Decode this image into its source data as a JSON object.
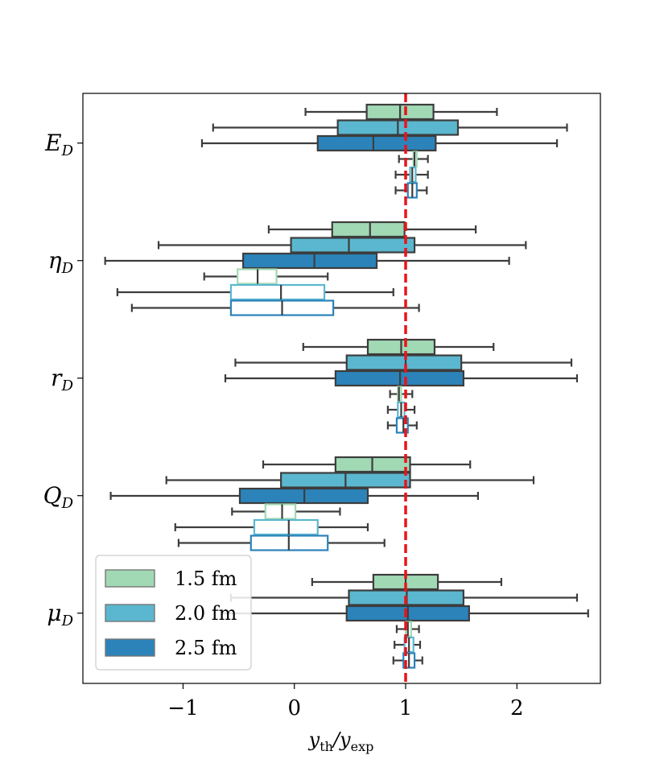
{
  "chart_data": {
    "type": "boxplot",
    "orientation": "horizontal",
    "xlabel": "y_th / y_exp",
    "xlim": [
      -1.9,
      2.75
    ],
    "xticks": [
      -1,
      0,
      1,
      2
    ],
    "xtick_labels": [
      "−1",
      "0",
      "1",
      "2"
    ],
    "reference_line": {
      "x": 1,
      "color": "#e8141a",
      "style": "dashed"
    },
    "categories": [
      "E_D",
      "η_D",
      "r_D",
      "Q_D",
      "μ_D"
    ],
    "category_labels": [
      {
        "main": "E",
        "sub": "D"
      },
      {
        "main": "η",
        "sub": "D"
      },
      {
        "main": "r",
        "sub": "D"
      },
      {
        "main": "Q",
        "sub": "D"
      },
      {
        "main": "μ",
        "sub": "D"
      }
    ],
    "legend": {
      "placement": "lower-left",
      "entries": [
        {
          "label": "1.5 fm",
          "color": "#a1d9b4"
        },
        {
          "label": "2.0 fm",
          "color": "#5bb7cf"
        },
        {
          "label": "2.5 fm",
          "color": "#2b83ba"
        }
      ]
    },
    "groups": [
      {
        "category": "E_D",
        "boxes": [
          {
            "series": "1.5 fm",
            "style": "filled",
            "whislo": 0.1,
            "q1": 0.65,
            "med": 0.95,
            "q3": 1.25,
            "whishi": 1.82
          },
          {
            "series": "2.0 fm",
            "style": "filled",
            "whislo": -0.73,
            "q1": 0.39,
            "med": 0.93,
            "q3": 1.47,
            "whishi": 2.45
          },
          {
            "series": "2.5 fm",
            "style": "filled",
            "whislo": -0.83,
            "q1": 0.21,
            "med": 0.71,
            "q3": 1.27,
            "whishi": 2.36
          },
          {
            "series": "1.5 fm",
            "style": "outline",
            "whislo": 0.94,
            "q1": 1.07,
            "med": 1.08,
            "q3": 1.1,
            "whishi": 1.2
          },
          {
            "series": "2.0 fm",
            "style": "outline",
            "whislo": 0.91,
            "q1": 1.04,
            "med": 1.06,
            "q3": 1.09,
            "whishi": 1.2
          },
          {
            "series": "2.5 fm",
            "style": "outline",
            "whislo": 0.91,
            "q1": 1.02,
            "med": 1.06,
            "q3": 1.1,
            "whishi": 1.19
          }
        ]
      },
      {
        "category": "η_D",
        "boxes": [
          {
            "series": "1.5 fm",
            "style": "filled",
            "whislo": -0.23,
            "q1": 0.34,
            "med": 0.68,
            "q3": 0.99,
            "whishi": 1.63
          },
          {
            "series": "2.0 fm",
            "style": "filled",
            "whislo": -1.22,
            "q1": -0.03,
            "med": 0.49,
            "q3": 1.08,
            "whishi": 2.08
          },
          {
            "series": "2.5 fm",
            "style": "filled",
            "whislo": -1.7,
            "q1": -0.46,
            "med": 0.18,
            "q3": 0.74,
            "whishi": 1.93
          },
          {
            "series": "1.5 fm",
            "style": "outline",
            "whislo": -0.81,
            "q1": -0.51,
            "med": -0.33,
            "q3": -0.16,
            "whishi": 0.3
          },
          {
            "series": "2.0 fm",
            "style": "outline",
            "whislo": -1.59,
            "q1": -0.57,
            "med": -0.12,
            "q3": 0.27,
            "whishi": 0.89
          },
          {
            "series": "2.5 fm",
            "style": "outline",
            "whislo": -1.46,
            "q1": -0.57,
            "med": -0.11,
            "q3": 0.35,
            "whishi": 1.12
          }
        ]
      },
      {
        "category": "r_D",
        "boxes": [
          {
            "series": "1.5 fm",
            "style": "filled",
            "whislo": 0.08,
            "q1": 0.66,
            "med": 0.96,
            "q3": 1.26,
            "whishi": 1.79
          },
          {
            "series": "2.0 fm",
            "style": "filled",
            "whislo": -0.53,
            "q1": 0.47,
            "med": 1.0,
            "q3": 1.5,
            "whishi": 2.49
          },
          {
            "series": "2.5 fm",
            "style": "filled",
            "whislo": -0.62,
            "q1": 0.37,
            "med": 0.95,
            "q3": 1.52,
            "whishi": 2.54
          },
          {
            "series": "1.5 fm",
            "style": "outline",
            "whislo": 0.86,
            "q1": 0.93,
            "med": 0.94,
            "q3": 0.96,
            "whishi": 1.06
          },
          {
            "series": "2.0 fm",
            "style": "outline",
            "whislo": 0.84,
            "q1": 0.93,
            "med": 0.96,
            "q3": 0.99,
            "whishi": 1.08
          },
          {
            "series": "2.5 fm",
            "style": "outline",
            "whislo": 0.84,
            "q1": 0.92,
            "med": 0.98,
            "q3": 1.02,
            "whishi": 1.1
          }
        ]
      },
      {
        "category": "Q_D",
        "boxes": [
          {
            "series": "1.5 fm",
            "style": "filled",
            "whislo": -0.28,
            "q1": 0.37,
            "med": 0.7,
            "q3": 1.04,
            "whishi": 1.58
          },
          {
            "series": "2.0 fm",
            "style": "filled",
            "whislo": -1.15,
            "q1": -0.12,
            "med": 0.46,
            "q3": 1.04,
            "whishi": 2.15
          },
          {
            "series": "2.5 fm",
            "style": "filled",
            "whislo": -1.65,
            "q1": -0.49,
            "med": 0.09,
            "q3": 0.66,
            "whishi": 1.65
          },
          {
            "series": "1.5 fm",
            "style": "outline",
            "whislo": -0.56,
            "q1": -0.26,
            "med": -0.11,
            "q3": 0.01,
            "whishi": 0.41
          },
          {
            "series": "2.0 fm",
            "style": "outline",
            "whislo": -1.07,
            "q1": -0.36,
            "med": -0.05,
            "q3": 0.21,
            "whishi": 0.66
          },
          {
            "series": "2.5 fm",
            "style": "outline",
            "whislo": -1.04,
            "q1": -0.39,
            "med": -0.05,
            "q3": 0.3,
            "whishi": 0.81
          }
        ]
      },
      {
        "category": "μ_D",
        "boxes": [
          {
            "series": "1.5 fm",
            "style": "filled",
            "whislo": 0.16,
            "q1": 0.71,
            "med": 1.0,
            "q3": 1.29,
            "whishi": 1.86
          },
          {
            "series": "2.0 fm",
            "style": "filled",
            "whislo": -0.57,
            "q1": 0.49,
            "med": 1.01,
            "q3": 1.52,
            "whishi": 2.54
          },
          {
            "series": "2.5 fm",
            "style": "filled",
            "whislo": -0.65,
            "q1": 0.47,
            "med": 1.02,
            "q3": 1.57,
            "whishi": 2.64
          },
          {
            "series": "1.5 fm",
            "style": "outline",
            "whislo": 0.92,
            "q1": 1.0,
            "med": 1.02,
            "q3": 1.05,
            "whishi": 1.12
          },
          {
            "series": "2.0 fm",
            "style": "outline",
            "whislo": 0.9,
            "q1": 0.99,
            "med": 1.03,
            "q3": 1.07,
            "whishi": 1.13
          },
          {
            "series": "2.5 fm",
            "style": "outline",
            "whislo": 0.89,
            "q1": 0.98,
            "med": 1.03,
            "q3": 1.08,
            "whishi": 1.15
          }
        ]
      }
    ]
  }
}
